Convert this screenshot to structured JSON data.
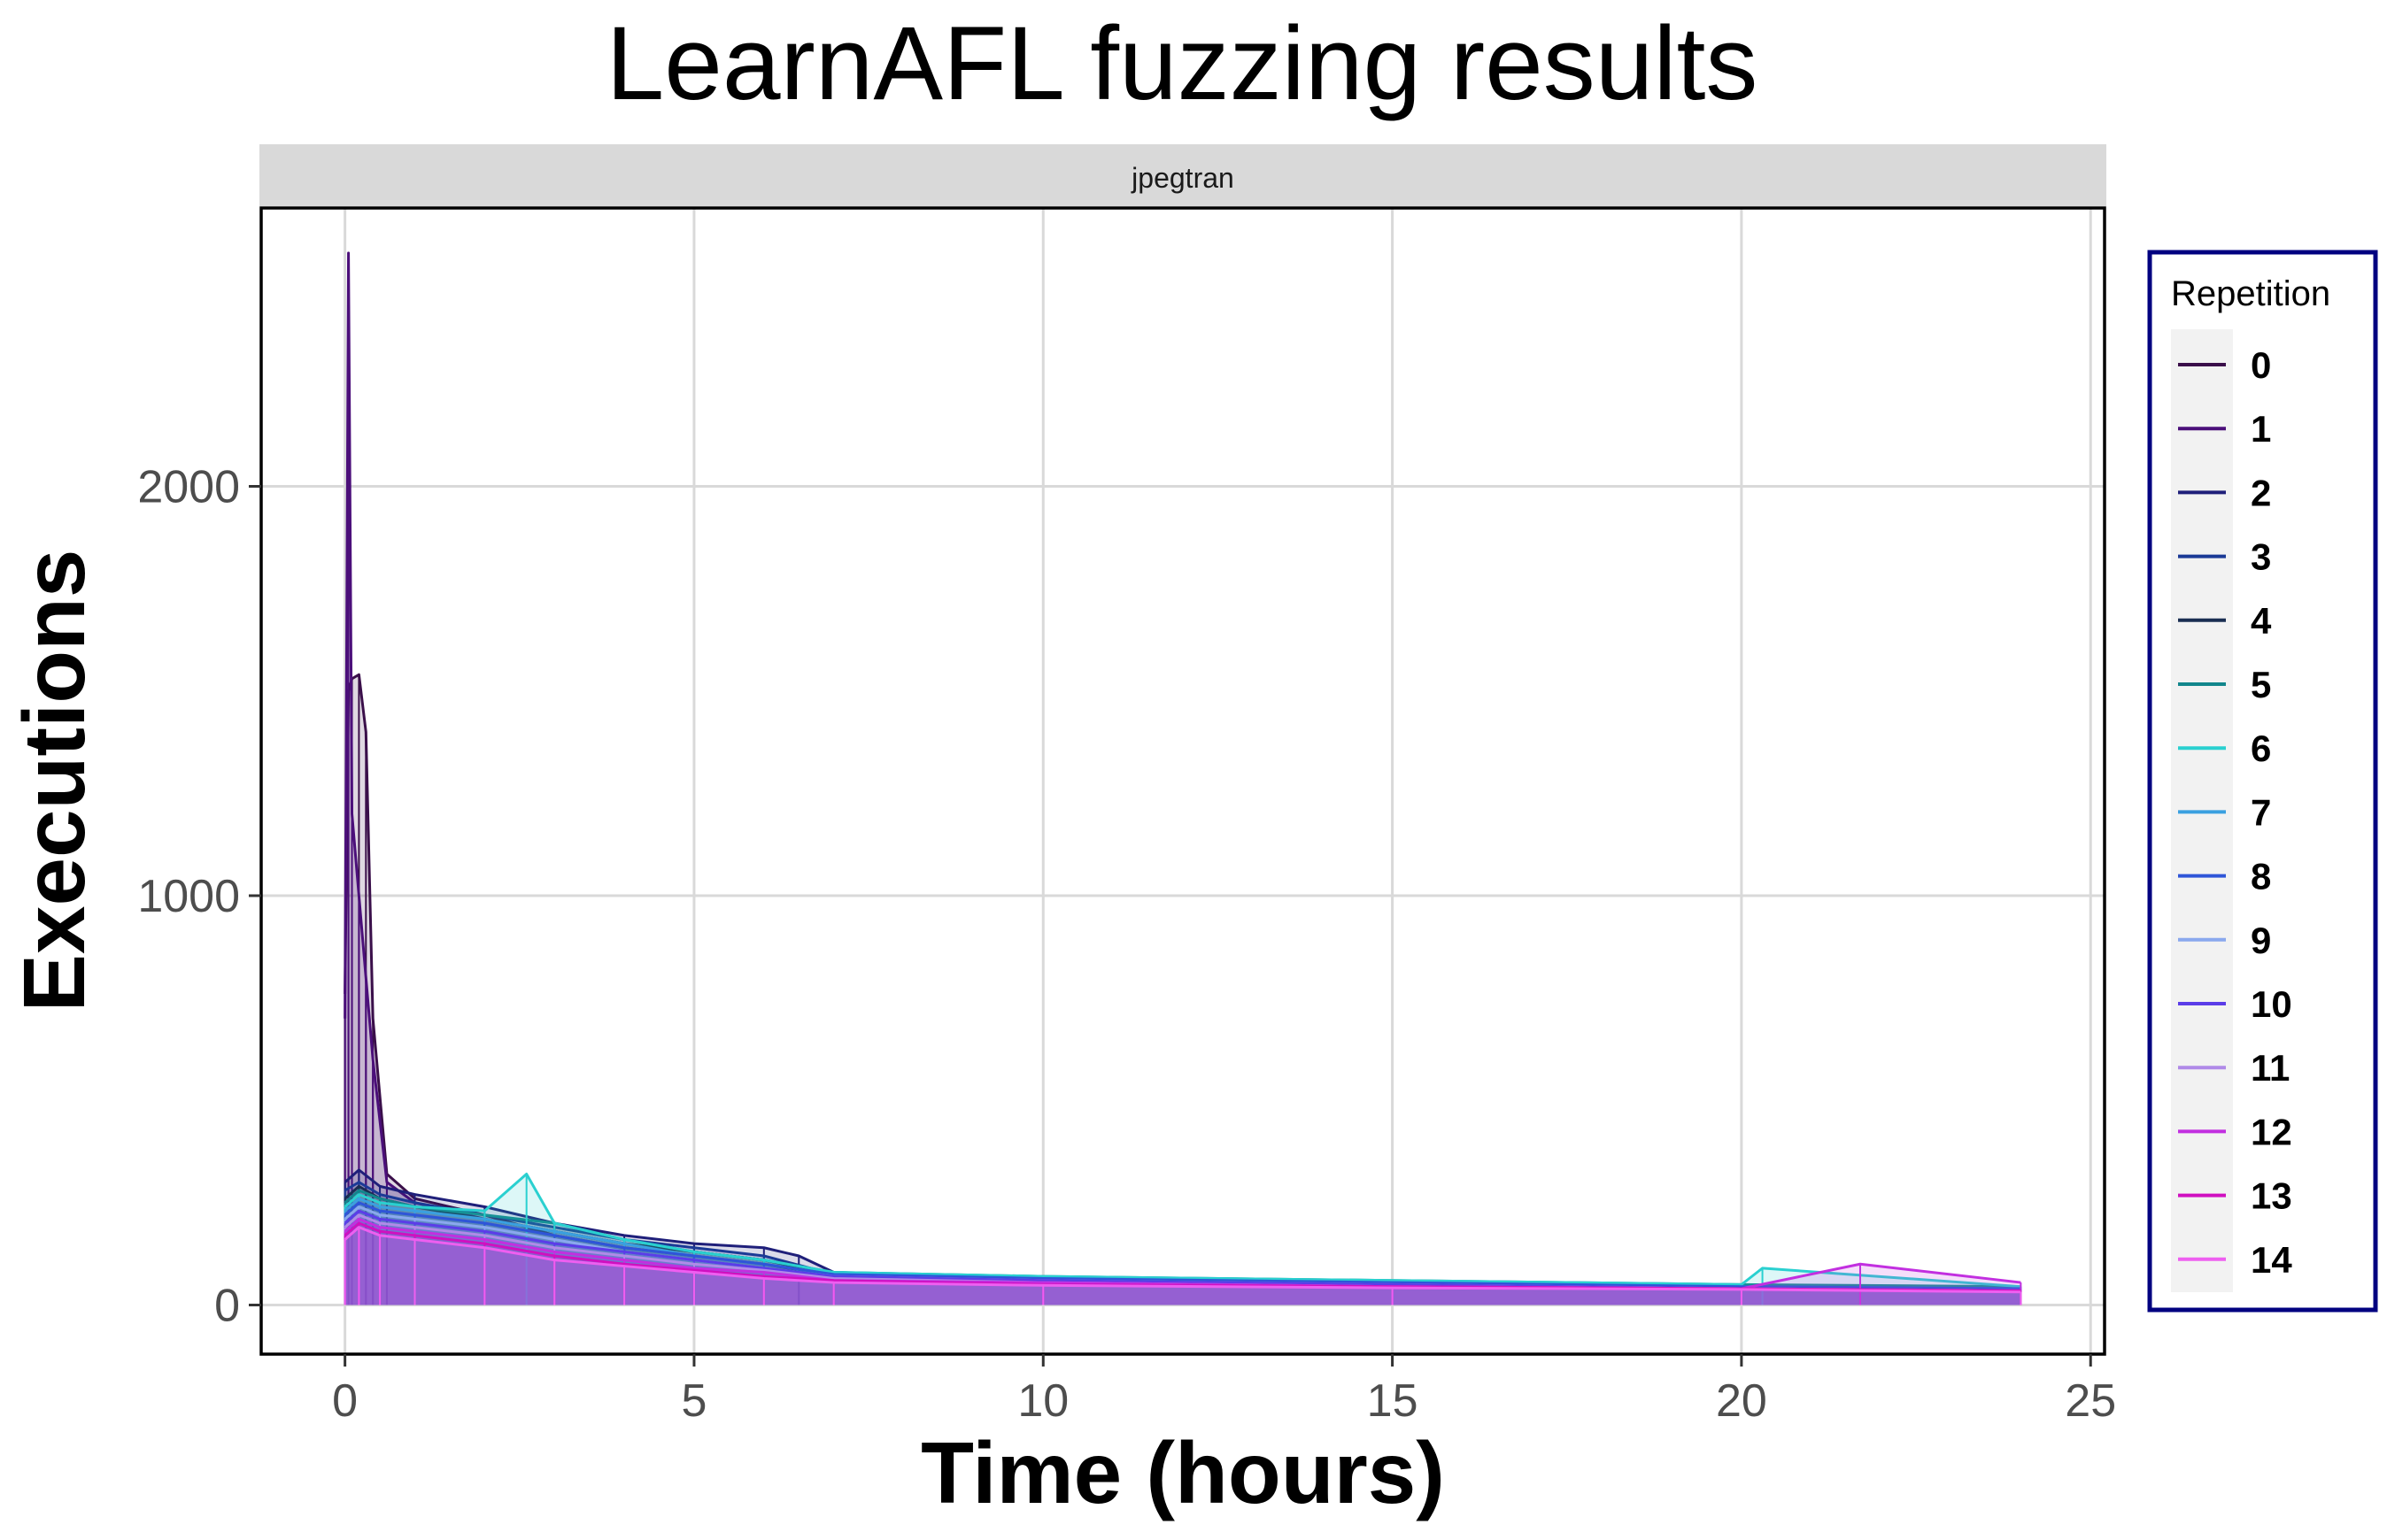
{
  "chart_data": {
    "type": "line",
    "title": "LearnAFL fuzzing results",
    "facet": "jpegtran",
    "xlabel": "Time (hours)",
    "ylabel": "Executions",
    "xlim": [
      -1.2,
      25.2
    ],
    "ylim": [
      -120,
      2680
    ],
    "x_ticks": [
      0,
      5,
      10,
      15,
      20,
      25
    ],
    "y_ticks": [
      0,
      1000,
      2000
    ],
    "x_tick_labels": [
      "0",
      "5",
      "10",
      "15",
      "20",
      "25"
    ],
    "y_tick_labels": [
      "0",
      "1000",
      "2000"
    ],
    "grid": true,
    "legend": {
      "title": "Repetition",
      "position": "right"
    },
    "series": [
      {
        "name": "0",
        "color": "#3a0f4a",
        "x": [
          0,
          0.05,
          0.1,
          0.2,
          0.3,
          0.4,
          0.6,
          1,
          2,
          3,
          4,
          5,
          6,
          7,
          10,
          15,
          20,
          24
        ],
        "y": [
          760,
          1500,
          1530,
          1540,
          1400,
          700,
          320,
          260,
          220,
          170,
          140,
          120,
          100,
          70,
          60,
          55,
          45,
          40
        ]
      },
      {
        "name": "1",
        "color": "#4b0f7a",
        "x": [
          0,
          0.05,
          0.1,
          0.2,
          0.3,
          0.4,
          0.6,
          1,
          2,
          3,
          4,
          5,
          6,
          7,
          10,
          15,
          20,
          24
        ],
        "y": [
          700,
          2570,
          1200,
          1000,
          800,
          600,
          300,
          250,
          210,
          180,
          150,
          130,
          110,
          75,
          65,
          55,
          45,
          40
        ]
      },
      {
        "name": "2",
        "color": "#1f1f7a",
        "x": [
          0,
          0.2,
          0.5,
          1,
          2,
          3,
          4,
          5,
          6,
          6.5,
          7,
          10,
          15,
          20,
          24
        ],
        "y": [
          300,
          330,
          290,
          270,
          240,
          200,
          170,
          150,
          140,
          120,
          80,
          65,
          55,
          45,
          40
        ]
      },
      {
        "name": "3",
        "color": "#1b3a96",
        "x": [
          0,
          0.2,
          0.5,
          1,
          2,
          3,
          4,
          5,
          6,
          7,
          10,
          15,
          20,
          24
        ],
        "y": [
          280,
          300,
          270,
          250,
          220,
          190,
          160,
          140,
          120,
          75,
          65,
          55,
          45,
          40
        ]
      },
      {
        "name": "4",
        "color": "#1a2e52",
        "x": [
          0,
          0.2,
          0.5,
          1,
          2,
          3,
          4,
          5,
          6,
          7,
          10,
          15,
          20,
          24
        ],
        "y": [
          260,
          290,
          260,
          240,
          210,
          180,
          150,
          130,
          110,
          75,
          65,
          55,
          45,
          40
        ]
      },
      {
        "name": "5",
        "color": "#12868c",
        "x": [
          0,
          0.2,
          0.5,
          1,
          2,
          3,
          4,
          5,
          6,
          7,
          10,
          15,
          20,
          24
        ],
        "y": [
          250,
          280,
          260,
          240,
          220,
          200,
          160,
          130,
          110,
          80,
          70,
          60,
          50,
          45
        ]
      },
      {
        "name": "6",
        "color": "#2ad0d0",
        "x": [
          0,
          0.2,
          0.5,
          1,
          2,
          2.6,
          3,
          4,
          5,
          6,
          7,
          10,
          15,
          20,
          20.3,
          24
        ],
        "y": [
          240,
          270,
          250,
          240,
          230,
          320,
          200,
          160,
          130,
          110,
          80,
          70,
          60,
          50,
          90,
          45
        ]
      },
      {
        "name": "7",
        "color": "#3aa0e0",
        "x": [
          0,
          0.2,
          0.5,
          1,
          2,
          3,
          4,
          5,
          6,
          7,
          10,
          15,
          20,
          24
        ],
        "y": [
          230,
          260,
          240,
          230,
          210,
          180,
          150,
          120,
          100,
          75,
          65,
          55,
          45,
          40
        ]
      },
      {
        "name": "8",
        "color": "#2f55d8",
        "x": [
          0,
          0.2,
          0.5,
          1,
          2,
          3,
          4,
          5,
          6,
          7,
          10,
          15,
          20,
          24
        ],
        "y": [
          220,
          250,
          230,
          220,
          200,
          170,
          140,
          120,
          100,
          75,
          65,
          55,
          45,
          40
        ]
      },
      {
        "name": "9",
        "color": "#8aa8ee",
        "x": [
          0,
          0.2,
          0.5,
          1,
          2,
          3,
          4,
          5,
          6,
          7,
          10,
          15,
          20,
          24
        ],
        "y": [
          210,
          240,
          220,
          210,
          190,
          160,
          130,
          110,
          90,
          70,
          60,
          50,
          40,
          35
        ]
      },
      {
        "name": "10",
        "color": "#5b3de8",
        "x": [
          0,
          0.2,
          0.5,
          1,
          2,
          3,
          4,
          5,
          6,
          7,
          10,
          15,
          20,
          24
        ],
        "y": [
          200,
          230,
          210,
          200,
          180,
          150,
          130,
          110,
          90,
          70,
          60,
          50,
          40,
          35
        ]
      },
      {
        "name": "11",
        "color": "#b08ae8",
        "x": [
          0,
          0.2,
          0.5,
          1,
          2,
          3,
          4,
          5,
          6,
          7,
          10,
          15,
          20,
          24
        ],
        "y": [
          190,
          220,
          200,
          190,
          170,
          140,
          120,
          100,
          85,
          65,
          55,
          45,
          40,
          35
        ]
      },
      {
        "name": "12",
        "color": "#c22fe0",
        "x": [
          0,
          0.2,
          0.5,
          1,
          2,
          3,
          4,
          5,
          6,
          7,
          10,
          15,
          20,
          21.7,
          24
        ],
        "y": [
          180,
          210,
          190,
          180,
          160,
          130,
          110,
          90,
          80,
          60,
          55,
          45,
          40,
          100,
          55
        ]
      },
      {
        "name": "13",
        "color": "#d010c0",
        "x": [
          0,
          0.2,
          0.5,
          1,
          2,
          3,
          4,
          5,
          6,
          7,
          10,
          15,
          20,
          24
        ],
        "y": [
          170,
          200,
          180,
          170,
          150,
          120,
          100,
          85,
          70,
          60,
          50,
          45,
          40,
          35
        ]
      },
      {
        "name": "14",
        "color": "#ee5ff0",
        "x": [
          0,
          0.2,
          0.5,
          1,
          2,
          3,
          4,
          5,
          6,
          7,
          10,
          15,
          20,
          24
        ],
        "y": [
          160,
          190,
          170,
          160,
          140,
          110,
          95,
          80,
          65,
          55,
          48,
          42,
          38,
          32
        ]
      }
    ]
  }
}
